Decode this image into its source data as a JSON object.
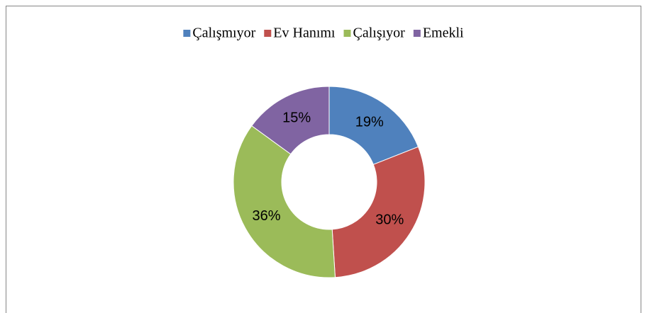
{
  "chart_data": {
    "type": "donut",
    "categories": [
      "Çalışmıyor",
      "Ev Hanımı",
      "Çalışıyor",
      "Emekli"
    ],
    "series": [
      {
        "values": [
          19,
          30,
          36,
          15
        ],
        "value_labels": [
          "19%",
          "30%",
          "36%",
          "15%"
        ],
        "colors": [
          "#4f81bd",
          "#c0504d",
          "#9bbb59",
          "#8064a2"
        ]
      }
    ],
    "legend": "top"
  }
}
